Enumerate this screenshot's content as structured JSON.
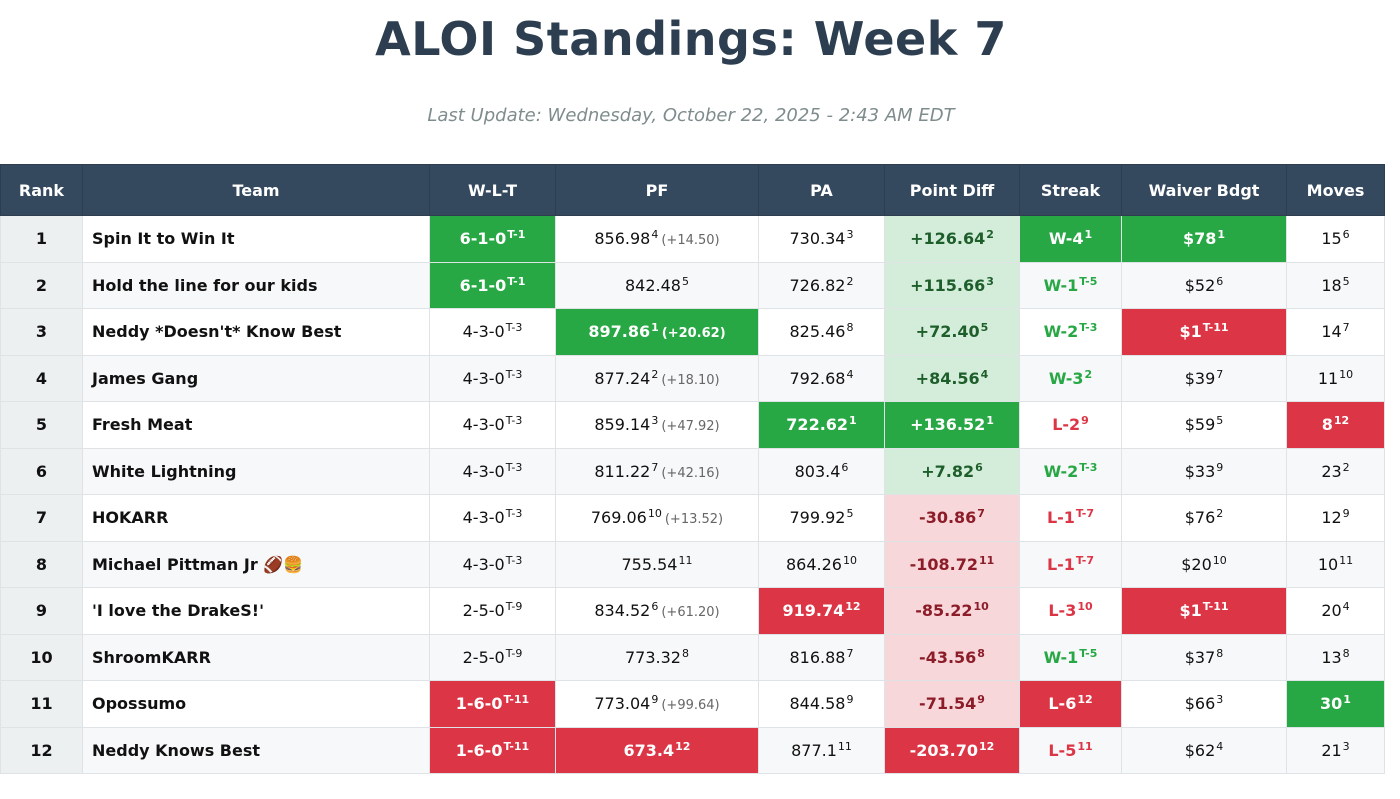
{
  "page": {
    "title": "ALOI Standings: Week 7",
    "last_update": "Last Update: Wednesday, October 22, 2025 - 2:43 AM EDT"
  },
  "colors": {
    "header_bg": "#34495e",
    "title": "#2c3e50",
    "good": "#28a745",
    "bad": "#dc3545",
    "good_light": "#d4edda",
    "bad_light": "#f8d7da"
  },
  "columns": [
    "Rank",
    "Team",
    "W-L-T",
    "PF",
    "PA",
    "Point Diff",
    "Streak",
    "Waiver Bdgt",
    "Moves"
  ],
  "rows": [
    {
      "rank": "1",
      "team": "Spin It to Win It",
      "wlt": {
        "v": "6-1-0",
        "r": "T-1",
        "s": "dg"
      },
      "pf": {
        "v": "856.98",
        "r": "4",
        "x": "(+14.50)",
        "s": ""
      },
      "pa": {
        "v": "730.34",
        "r": "3",
        "s": ""
      },
      "diff": {
        "v": "+126.64",
        "r": "2",
        "s": "lg"
      },
      "streak": {
        "v": "W-4",
        "r": "1",
        "s": "dg"
      },
      "waiver": {
        "v": "$78",
        "r": "1",
        "s": "dg"
      },
      "moves": {
        "v": "15",
        "r": "6",
        "s": ""
      }
    },
    {
      "rank": "2",
      "team": "Hold the line for our kids",
      "wlt": {
        "v": "6-1-0",
        "r": "T-1",
        "s": "dg"
      },
      "pf": {
        "v": "842.48",
        "r": "5",
        "x": "",
        "s": ""
      },
      "pa": {
        "v": "726.82",
        "r": "2",
        "s": ""
      },
      "diff": {
        "v": "+115.66",
        "r": "3",
        "s": "lg"
      },
      "streak": {
        "v": "W-1",
        "r": "T-5",
        "s": "tg"
      },
      "waiver": {
        "v": "$52",
        "r": "6",
        "s": ""
      },
      "moves": {
        "v": "18",
        "r": "5",
        "s": ""
      }
    },
    {
      "rank": "3",
      "team": "Neddy *Doesn't* Know Best",
      "wlt": {
        "v": "4-3-0",
        "r": "T-3",
        "s": ""
      },
      "pf": {
        "v": "897.86",
        "r": "1",
        "x": "(+20.62)",
        "s": "dg"
      },
      "pa": {
        "v": "825.46",
        "r": "8",
        "s": ""
      },
      "diff": {
        "v": "+72.40",
        "r": "5",
        "s": "lg"
      },
      "streak": {
        "v": "W-2",
        "r": "T-3",
        "s": "tg"
      },
      "waiver": {
        "v": "$1",
        "r": "T-11",
        "s": "dr"
      },
      "moves": {
        "v": "14",
        "r": "7",
        "s": ""
      }
    },
    {
      "rank": "4",
      "team": "James Gang",
      "wlt": {
        "v": "4-3-0",
        "r": "T-3",
        "s": ""
      },
      "pf": {
        "v": "877.24",
        "r": "2",
        "x": "(+18.10)",
        "s": ""
      },
      "pa": {
        "v": "792.68",
        "r": "4",
        "s": ""
      },
      "diff": {
        "v": "+84.56",
        "r": "4",
        "s": "lg"
      },
      "streak": {
        "v": "W-3",
        "r": "2",
        "s": "tg"
      },
      "waiver": {
        "v": "$39",
        "r": "7",
        "s": ""
      },
      "moves": {
        "v": "11",
        "r": "10",
        "s": ""
      }
    },
    {
      "rank": "5",
      "team": "Fresh Meat",
      "wlt": {
        "v": "4-3-0",
        "r": "T-3",
        "s": ""
      },
      "pf": {
        "v": "859.14",
        "r": "3",
        "x": "(+47.92)",
        "s": ""
      },
      "pa": {
        "v": "722.62",
        "r": "1",
        "s": "dg"
      },
      "diff": {
        "v": "+136.52",
        "r": "1",
        "s": "dg"
      },
      "streak": {
        "v": "L-2",
        "r": "9",
        "s": "tr"
      },
      "waiver": {
        "v": "$59",
        "r": "5",
        "s": ""
      },
      "moves": {
        "v": "8",
        "r": "12",
        "s": "dr"
      }
    },
    {
      "rank": "6",
      "team": "White Lightning",
      "wlt": {
        "v": "4-3-0",
        "r": "T-3",
        "s": ""
      },
      "pf": {
        "v": "811.22",
        "r": "7",
        "x": "(+42.16)",
        "s": ""
      },
      "pa": {
        "v": "803.4",
        "r": "6",
        "s": ""
      },
      "diff": {
        "v": "+7.82",
        "r": "6",
        "s": "lg"
      },
      "streak": {
        "v": "W-2",
        "r": "T-3",
        "s": "tg"
      },
      "waiver": {
        "v": "$33",
        "r": "9",
        "s": ""
      },
      "moves": {
        "v": "23",
        "r": "2",
        "s": ""
      }
    },
    {
      "rank": "7",
      "team": "HOKARR",
      "wlt": {
        "v": "4-3-0",
        "r": "T-3",
        "s": ""
      },
      "pf": {
        "v": "769.06",
        "r": "10",
        "x": "(+13.52)",
        "s": ""
      },
      "pa": {
        "v": "799.92",
        "r": "5",
        "s": ""
      },
      "diff": {
        "v": "-30.86",
        "r": "7",
        "s": "lr"
      },
      "streak": {
        "v": "L-1",
        "r": "T-7",
        "s": "tr"
      },
      "waiver": {
        "v": "$76",
        "r": "2",
        "s": ""
      },
      "moves": {
        "v": "12",
        "r": "9",
        "s": ""
      }
    },
    {
      "rank": "8",
      "team": "Michael Pittman Jr 🏈🍔",
      "wlt": {
        "v": "4-3-0",
        "r": "T-3",
        "s": ""
      },
      "pf": {
        "v": "755.54",
        "r": "11",
        "x": "",
        "s": ""
      },
      "pa": {
        "v": "864.26",
        "r": "10",
        "s": ""
      },
      "diff": {
        "v": "-108.72",
        "r": "11",
        "s": "lr"
      },
      "streak": {
        "v": "L-1",
        "r": "T-7",
        "s": "tr"
      },
      "waiver": {
        "v": "$20",
        "r": "10",
        "s": ""
      },
      "moves": {
        "v": "10",
        "r": "11",
        "s": ""
      }
    },
    {
      "rank": "9",
      "team": "'I love the DrakeS!'",
      "wlt": {
        "v": "2-5-0",
        "r": "T-9",
        "s": ""
      },
      "pf": {
        "v": "834.52",
        "r": "6",
        "x": "(+61.20)",
        "s": ""
      },
      "pa": {
        "v": "919.74",
        "r": "12",
        "s": "dr"
      },
      "diff": {
        "v": "-85.22",
        "r": "10",
        "s": "lr"
      },
      "streak": {
        "v": "L-3",
        "r": "10",
        "s": "tr"
      },
      "waiver": {
        "v": "$1",
        "r": "T-11",
        "s": "dr"
      },
      "moves": {
        "v": "20",
        "r": "4",
        "s": ""
      }
    },
    {
      "rank": "10",
      "team": "ShroomKARR",
      "wlt": {
        "v": "2-5-0",
        "r": "T-9",
        "s": ""
      },
      "pf": {
        "v": "773.32",
        "r": "8",
        "x": "",
        "s": ""
      },
      "pa": {
        "v": "816.88",
        "r": "7",
        "s": ""
      },
      "diff": {
        "v": "-43.56",
        "r": "8",
        "s": "lr"
      },
      "streak": {
        "v": "W-1",
        "r": "T-5",
        "s": "tg"
      },
      "waiver": {
        "v": "$37",
        "r": "8",
        "s": ""
      },
      "moves": {
        "v": "13",
        "r": "8",
        "s": ""
      }
    },
    {
      "rank": "11",
      "team": "Opossumo",
      "wlt": {
        "v": "1-6-0",
        "r": "T-11",
        "s": "dr"
      },
      "pf": {
        "v": "773.04",
        "r": "9",
        "x": "(+99.64)",
        "s": ""
      },
      "pa": {
        "v": "844.58",
        "r": "9",
        "s": ""
      },
      "diff": {
        "v": "-71.54",
        "r": "9",
        "s": "lr"
      },
      "streak": {
        "v": "L-6",
        "r": "12",
        "s": "dr"
      },
      "waiver": {
        "v": "$66",
        "r": "3",
        "s": ""
      },
      "moves": {
        "v": "30",
        "r": "1",
        "s": "dg"
      }
    },
    {
      "rank": "12",
      "team": "Neddy Knows Best",
      "wlt": {
        "v": "1-6-0",
        "r": "T-11",
        "s": "dr"
      },
      "pf": {
        "v": "673.4",
        "r": "12",
        "x": "",
        "s": "dr"
      },
      "pa": {
        "v": "877.1",
        "r": "11",
        "s": ""
      },
      "diff": {
        "v": "-203.70",
        "r": "12",
        "s": "dr"
      },
      "streak": {
        "v": "L-5",
        "r": "11",
        "s": "tr"
      },
      "waiver": {
        "v": "$62",
        "r": "4",
        "s": ""
      },
      "moves": {
        "v": "21",
        "r": "3",
        "s": ""
      }
    }
  ]
}
